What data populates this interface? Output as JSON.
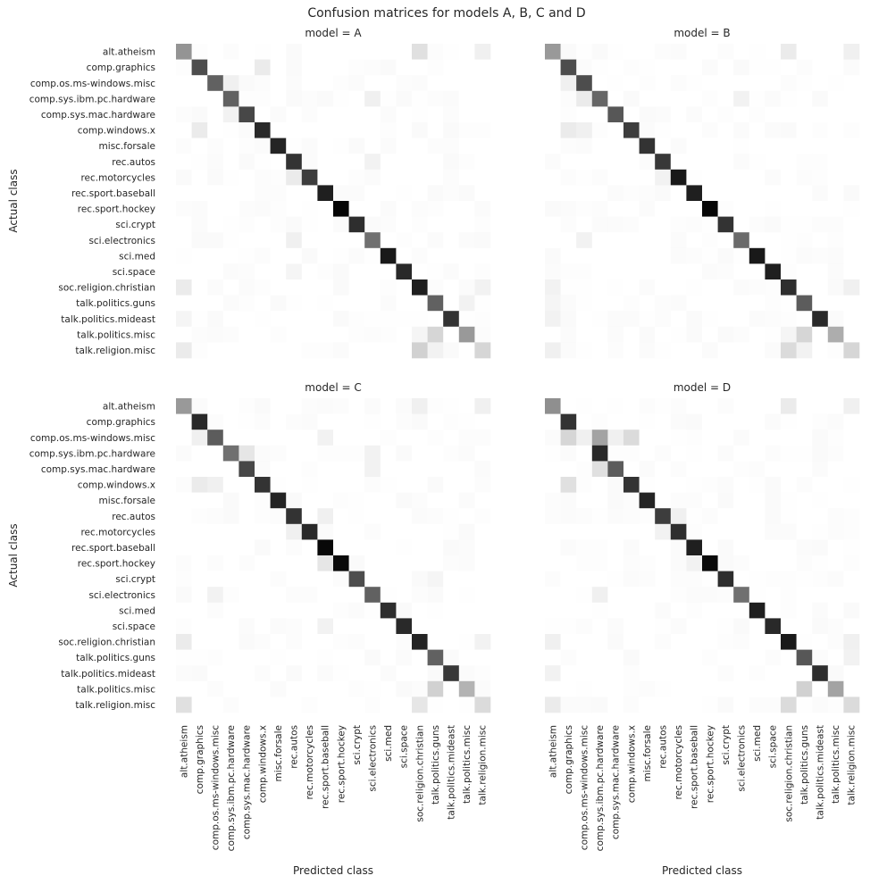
{
  "title": "Confusion matrices for models A, B, C and D",
  "x_axis_label": "Predicted class",
  "y_axis_label": "Actual class",
  "chart_data": {
    "type": "heatmap",
    "title": "Confusion matrices for models A, B, C and D",
    "xlabel": "Predicted class",
    "ylabel": "Actual class",
    "colormap": "greys",
    "value_range": [
      0,
      1
    ],
    "classes": [
      "alt.atheism",
      "comp.graphics",
      "comp.os.ms-windows.misc",
      "comp.sys.ibm.pc.hardware",
      "comp.sys.mac.hardware",
      "comp.windows.x",
      "misc.forsale",
      "rec.autos",
      "rec.motorcycles",
      "rec.sport.baseball",
      "rec.sport.hockey",
      "sci.crypt",
      "sci.electronics",
      "sci.med",
      "sci.space",
      "soc.religion.christian",
      "talk.politics.guns",
      "talk.politics.mideast",
      "talk.politics.misc",
      "talk.religion.misc"
    ],
    "panels": [
      {
        "title": "model = A",
        "diagonal": [
          0.42,
          0.7,
          0.62,
          0.62,
          0.72,
          0.84,
          0.86,
          0.8,
          0.76,
          0.88,
          0.98,
          0.82,
          0.56,
          0.9,
          0.84,
          0.88,
          0.62,
          0.8,
          0.4,
          0.16
        ],
        "off_diagonal": [
          [
            0,
            15,
            0.12
          ],
          [
            0,
            19,
            0.06
          ],
          [
            1,
            5,
            0.08
          ],
          [
            2,
            3,
            0.06
          ],
          [
            3,
            12,
            0.06
          ],
          [
            4,
            3,
            0.05
          ],
          [
            5,
            1,
            0.08
          ],
          [
            7,
            12,
            0.05
          ],
          [
            8,
            7,
            0.08
          ],
          [
            12,
            7,
            0.06
          ],
          [
            15,
            0,
            0.08
          ],
          [
            15,
            19,
            0.05
          ],
          [
            16,
            18,
            0.05
          ],
          [
            18,
            16,
            0.16
          ],
          [
            18,
            15,
            0.04
          ],
          [
            19,
            15,
            0.18
          ],
          [
            19,
            0,
            0.08
          ],
          [
            19,
            16,
            0.05
          ],
          [
            17,
            0,
            0.04
          ],
          [
            14,
            7,
            0.04
          ]
        ]
      },
      {
        "title": "model = B",
        "diagonal": [
          0.4,
          0.7,
          0.7,
          0.6,
          0.66,
          0.76,
          0.8,
          0.78,
          0.9,
          0.88,
          0.97,
          0.8,
          0.58,
          0.9,
          0.88,
          0.82,
          0.64,
          0.84,
          0.32,
          0.16
        ],
        "off_diagonal": [
          [
            0,
            15,
            0.08
          ],
          [
            0,
            19,
            0.06
          ],
          [
            2,
            1,
            0.06
          ],
          [
            3,
            2,
            0.08
          ],
          [
            3,
            12,
            0.05
          ],
          [
            5,
            1,
            0.08
          ],
          [
            5,
            2,
            0.06
          ],
          [
            8,
            7,
            0.05
          ],
          [
            12,
            2,
            0.05
          ],
          [
            15,
            0,
            0.05
          ],
          [
            15,
            19,
            0.06
          ],
          [
            18,
            16,
            0.16
          ],
          [
            18,
            15,
            0.04
          ],
          [
            19,
            15,
            0.14
          ],
          [
            19,
            0,
            0.06
          ],
          [
            19,
            16,
            0.05
          ],
          [
            17,
            0,
            0.05
          ],
          [
            16,
            0,
            0.04
          ]
        ]
      },
      {
        "title": "model = C",
        "diagonal": [
          0.4,
          0.84,
          0.64,
          0.56,
          0.72,
          0.8,
          0.86,
          0.8,
          0.84,
          0.97,
          0.96,
          0.7,
          0.62,
          0.82,
          0.84,
          0.86,
          0.62,
          0.78,
          0.3,
          0.14
        ],
        "off_diagonal": [
          [
            0,
            15,
            0.06
          ],
          [
            0,
            19,
            0.06
          ],
          [
            2,
            1,
            0.06
          ],
          [
            2,
            9,
            0.05
          ],
          [
            3,
            4,
            0.1
          ],
          [
            3,
            12,
            0.05
          ],
          [
            4,
            12,
            0.05
          ],
          [
            5,
            1,
            0.08
          ],
          [
            5,
            2,
            0.06
          ],
          [
            7,
            9,
            0.06
          ],
          [
            8,
            7,
            0.06
          ],
          [
            10,
            9,
            0.1
          ],
          [
            12,
            2,
            0.05
          ],
          [
            15,
            0,
            0.08
          ],
          [
            15,
            19,
            0.05
          ],
          [
            18,
            16,
            0.18
          ],
          [
            19,
            15,
            0.1
          ],
          [
            19,
            0,
            0.12
          ],
          [
            14,
            9,
            0.05
          ],
          [
            11,
            16,
            0.04
          ]
        ]
      },
      {
        "title": "model = D",
        "diagonal": [
          0.44,
          0.8,
          0.06,
          0.84,
          0.64,
          0.8,
          0.86,
          0.76,
          0.82,
          0.88,
          0.96,
          0.82,
          0.56,
          0.88,
          0.84,
          0.9,
          0.66,
          0.82,
          0.36,
          0.14
        ],
        "off_diagonal": [
          [
            0,
            15,
            0.08
          ],
          [
            0,
            19,
            0.06
          ],
          [
            2,
            1,
            0.16
          ],
          [
            2,
            3,
            0.36
          ],
          [
            2,
            5,
            0.14
          ],
          [
            2,
            4,
            0.06
          ],
          [
            4,
            3,
            0.12
          ],
          [
            5,
            1,
            0.12
          ],
          [
            7,
            8,
            0.06
          ],
          [
            8,
            7,
            0.05
          ],
          [
            10,
            9,
            0.05
          ],
          [
            12,
            3,
            0.06
          ],
          [
            15,
            0,
            0.06
          ],
          [
            15,
            19,
            0.06
          ],
          [
            16,
            19,
            0.05
          ],
          [
            18,
            16,
            0.18
          ],
          [
            19,
            15,
            0.14
          ],
          [
            19,
            0,
            0.08
          ],
          [
            17,
            0,
            0.05
          ]
        ]
      }
    ]
  }
}
